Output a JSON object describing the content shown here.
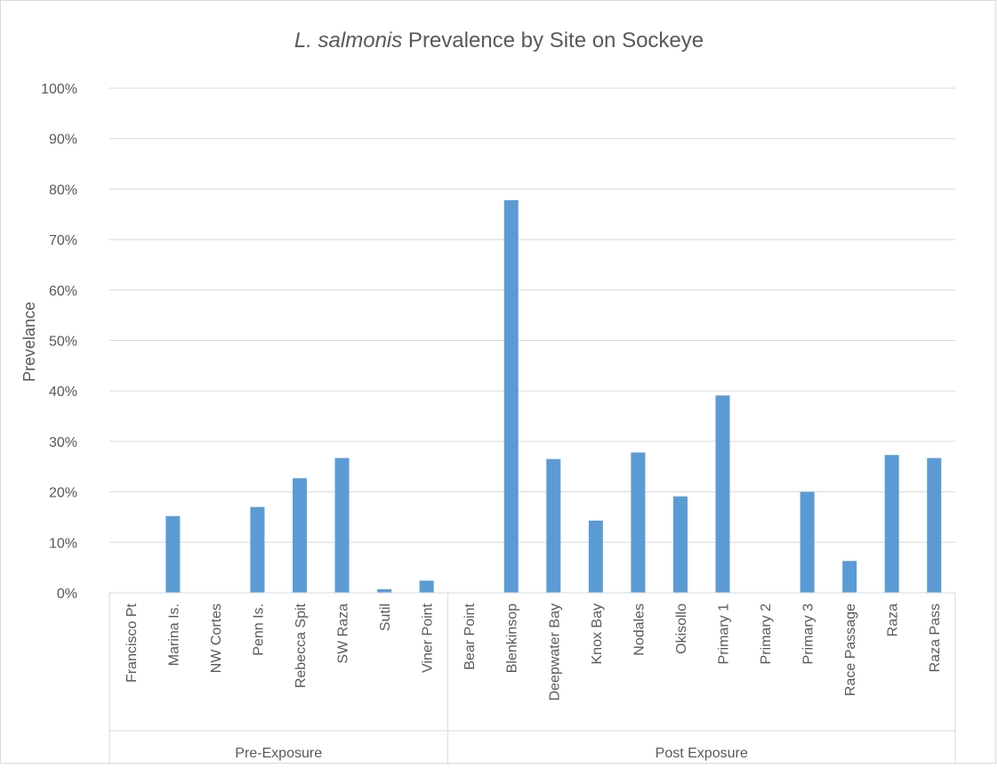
{
  "chart_data": {
    "type": "bar",
    "title_italic": "L. salmonis",
    "title_rest": " Prevalence by Site on Sockeye",
    "xlabel": "",
    "ylabel": "Prevelance",
    "ylim": [
      0,
      100
    ],
    "ytick_step": 10,
    "ytick_labels": [
      "0%",
      "10%",
      "20%",
      "30%",
      "40%",
      "50%",
      "60%",
      "70%",
      "80%",
      "90%",
      "100%"
    ],
    "grid": true,
    "legend": "none",
    "color": "#5b9bd5",
    "groups": [
      {
        "name": "Pre-Exposure",
        "categories": [
          "Francisco Pt",
          "Marina Is.",
          "NW Cortes",
          "Penn Is.",
          "Rebecca Spit",
          "SW Raza",
          "Sutil",
          "Viner Point"
        ],
        "values": [
          0,
          15.2,
          0,
          17,
          22.7,
          26.7,
          0.7,
          2.4
        ]
      },
      {
        "name": "Post Exposure",
        "categories": [
          "Bear Point",
          "Blenkinsop",
          "Deepwater Bay",
          "Knox Bay",
          "Nodales",
          "Okisollo",
          "Primary 1",
          "Primary 2",
          "Primary 3",
          "Race Passage",
          "Raza",
          "Raza Pass"
        ],
        "values": [
          0,
          77.8,
          26.5,
          14.3,
          27.8,
          19.1,
          39.1,
          0,
          20,
          6.3,
          27.3,
          26.7
        ]
      }
    ]
  }
}
